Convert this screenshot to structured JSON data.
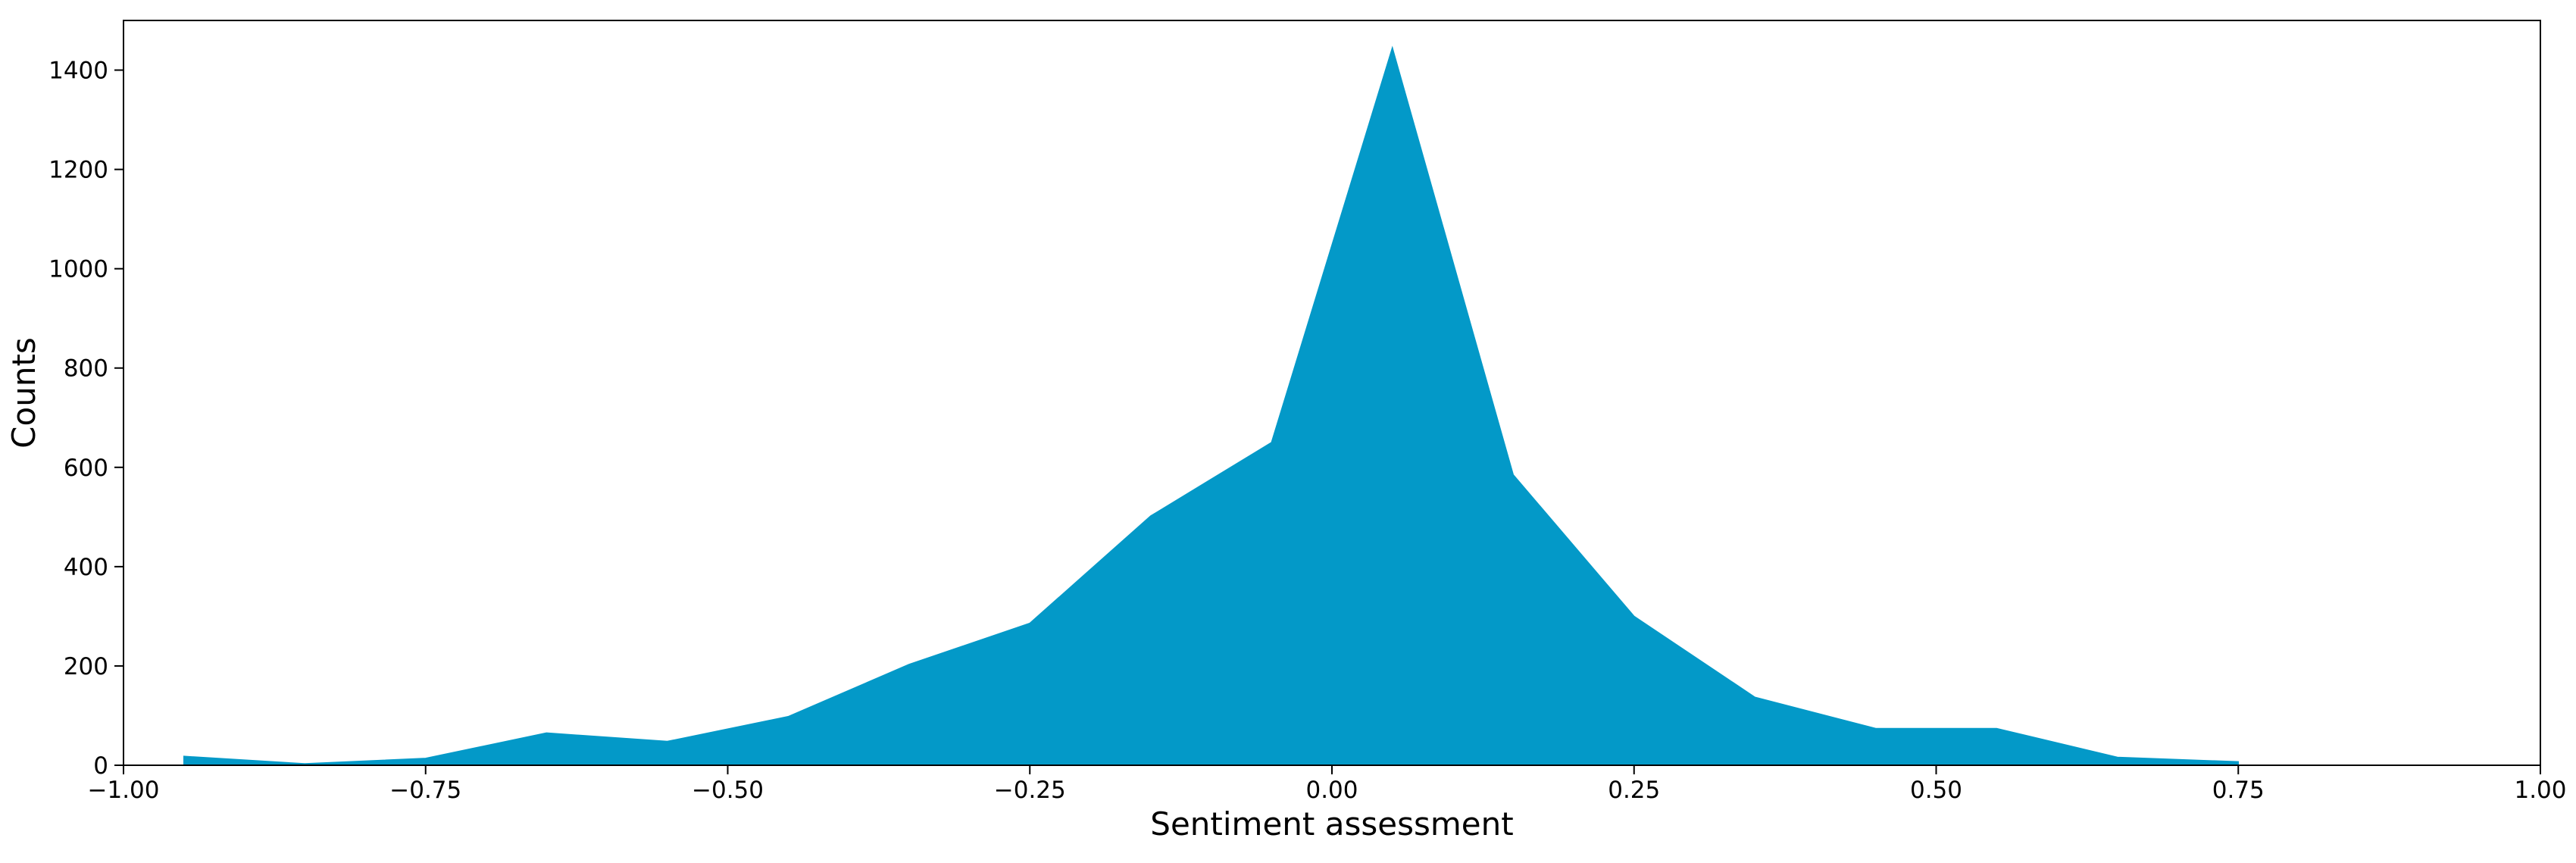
{
  "chart_data": {
    "type": "area",
    "title": "",
    "xlabel": "Sentiment assessment",
    "ylabel": "Counts",
    "xlim": [
      -1.0,
      1.0
    ],
    "ylim": [
      0,
      1500
    ],
    "grid": false,
    "legend": "none",
    "fill_color": "#0399c8",
    "x_ticks": [
      -1.0,
      -0.75,
      -0.5,
      -0.25,
      0.0,
      0.25,
      0.5,
      0.75,
      1.0
    ],
    "x_tick_labels": [
      "−1.00",
      "−0.75",
      "−0.50",
      "−0.25",
      "0.00",
      "0.25",
      "0.50",
      "0.75",
      "1.00"
    ],
    "y_ticks": [
      0,
      200,
      400,
      600,
      800,
      1000,
      1200,
      1400
    ],
    "y_tick_labels": [
      "0",
      "200",
      "400",
      "600",
      "800",
      "1000",
      "1200",
      "1400"
    ],
    "series": [
      {
        "x": [
          -0.95,
          -0.85,
          -0.75,
          -0.65,
          -0.55,
          -0.45,
          -0.35,
          -0.25,
          -0.15,
          -0.05,
          0.05,
          0.15,
          0.25,
          0.35,
          0.45,
          0.55,
          0.65,
          0.75
        ],
        "values": [
          18,
          3,
          14,
          65,
          48,
          98,
          203,
          286,
          502,
          650,
          1445,
          585,
          300,
          137,
          74,
          74,
          16,
          7
        ]
      }
    ]
  }
}
